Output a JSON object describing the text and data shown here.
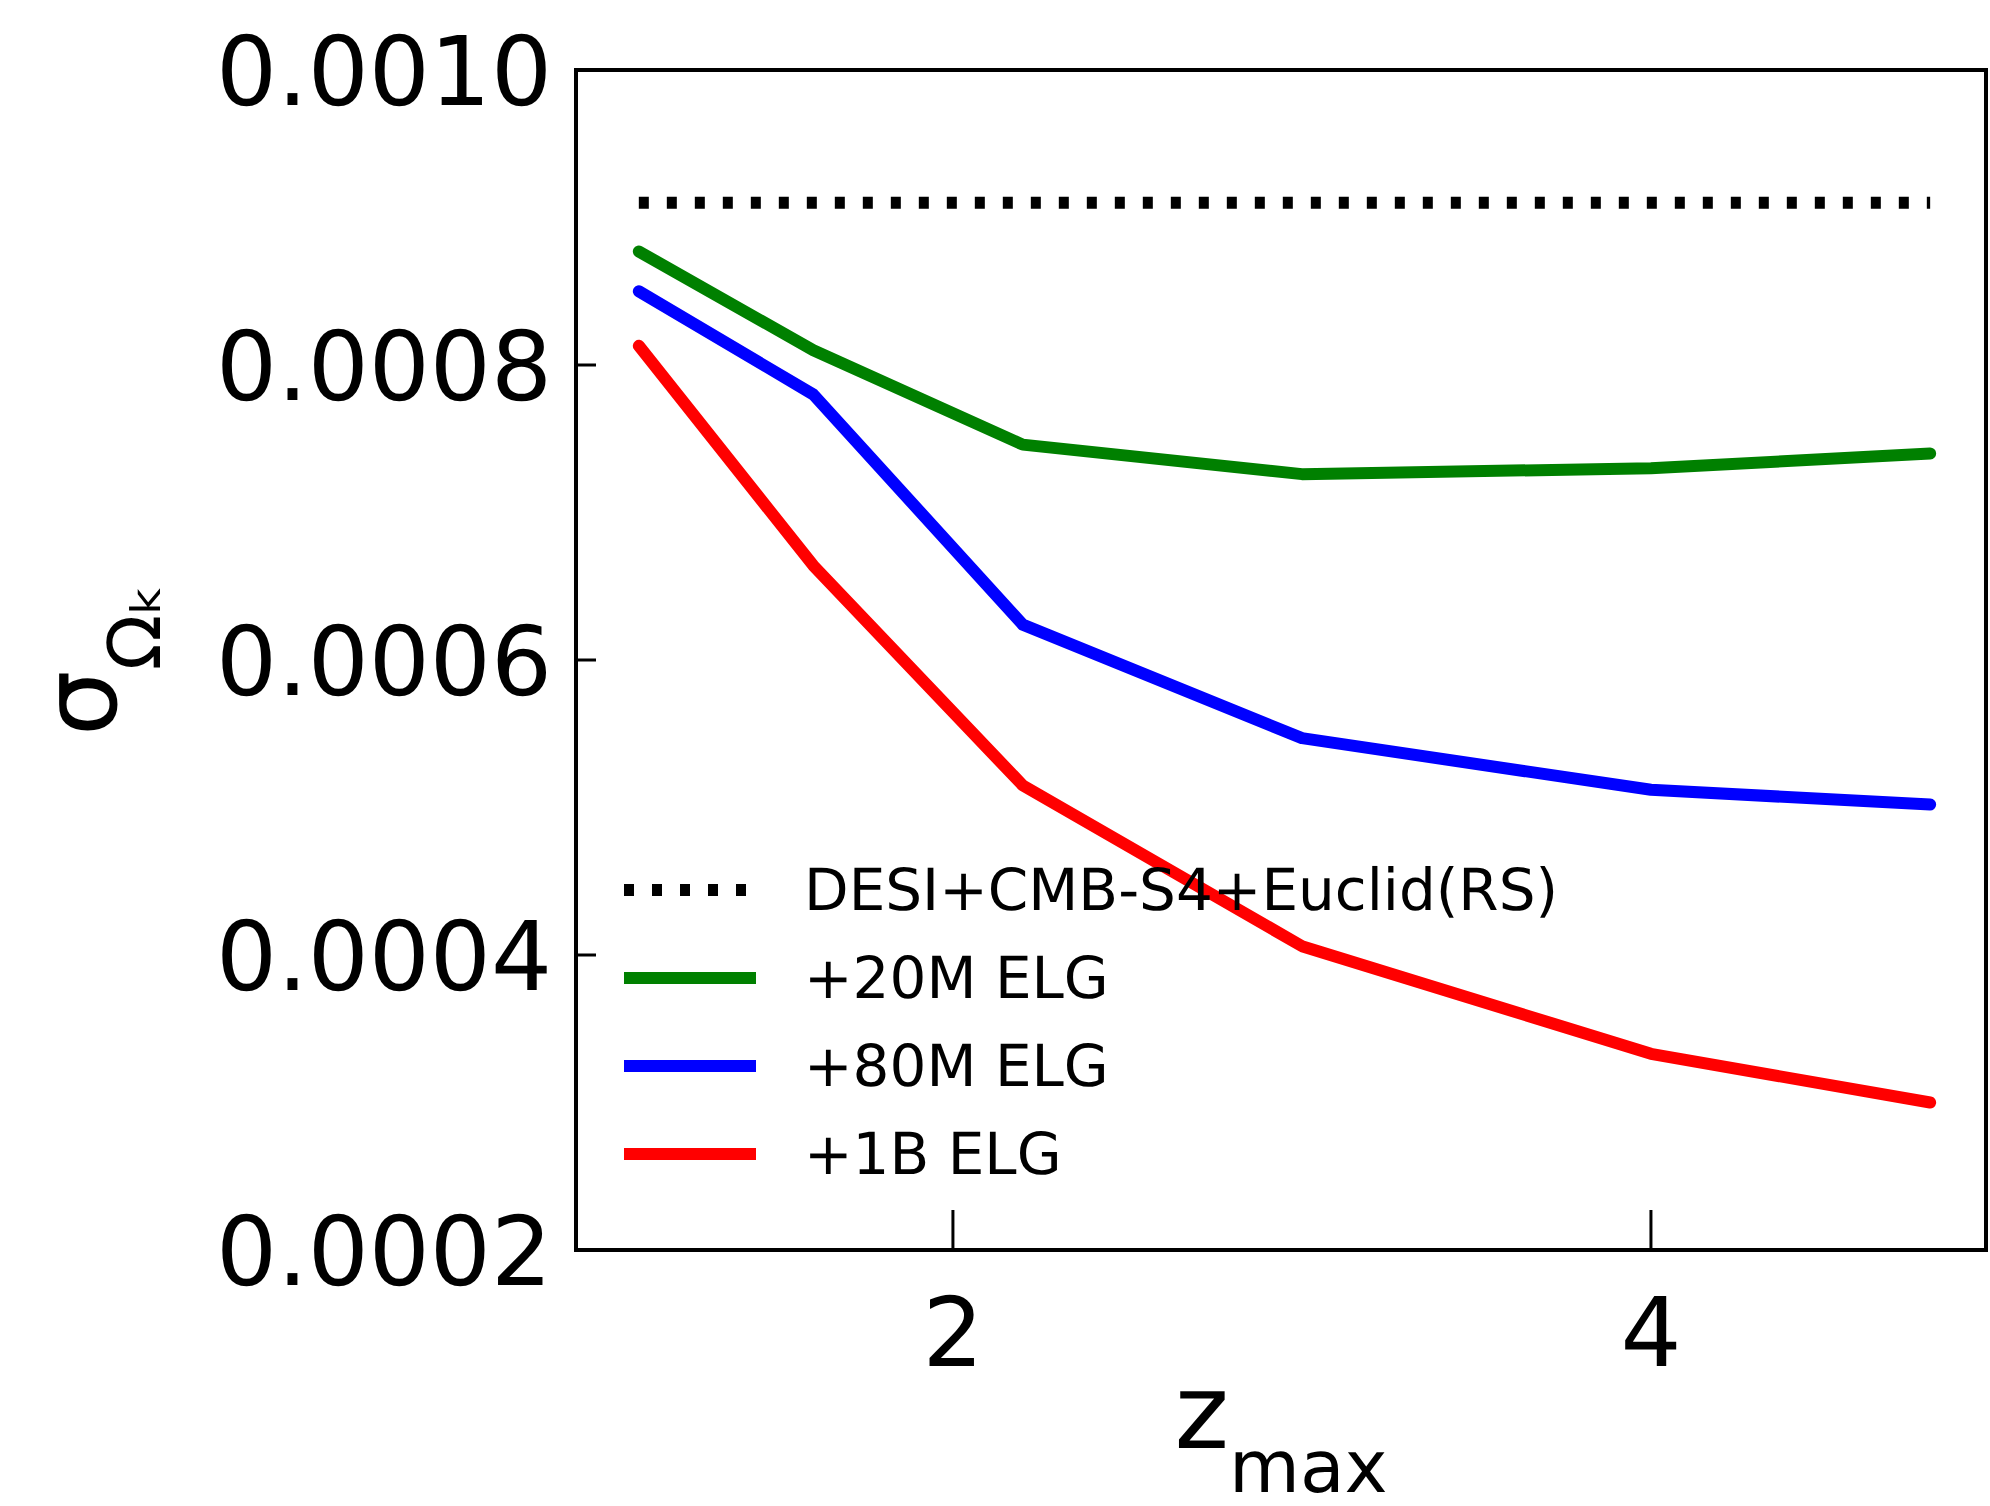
{
  "chart_data": {
    "type": "line",
    "xlabel": "z$_{max}$",
    "ylabel": "σ$_{Ωₖ}$",
    "xlim": [
      0.92,
      4.96
    ],
    "ylim": [
      0.0002,
      0.001
    ],
    "xticks": [
      2,
      4
    ],
    "yticks": [
      {
        "value": 0.0002,
        "label": "0.0002"
      },
      {
        "value": 0.0004,
        "label": "0.0004"
      },
      {
        "value": 0.0006,
        "label": "0.0006"
      },
      {
        "value": 0.0008,
        "label": "0.0008"
      },
      {
        "value": 0.001,
        "label": "0.0010"
      }
    ],
    "grid": false,
    "legend": "bottom left",
    "marker": "none",
    "series": [
      {
        "name": "DESI+CMB-S4+Euclid(RS)",
        "color": "#000000",
        "line_style": "dotted",
        "x": [
          1.1,
          4.8
        ],
        "values": [
          0.00091,
          0.00091
        ]
      },
      {
        "name": "+20M ELG",
        "color": "#008000",
        "line_style": "solid",
        "x": [
          1.1,
          1.6,
          2.2,
          3.0,
          4.0,
          4.8
        ],
        "values": [
          0.000877,
          0.00081,
          0.000746,
          0.000726,
          0.00073,
          0.00074
        ]
      },
      {
        "name": "+80M ELG",
        "color": "#0000ff",
        "line_style": "solid",
        "x": [
          1.1,
          1.6,
          2.2,
          3.0,
          4.0,
          4.8
        ],
        "values": [
          0.00085,
          0.00078,
          0.000624,
          0.000547,
          0.000512,
          0.000502
        ]
      },
      {
        "name": "+1B ELG",
        "color": "#ff0000",
        "line_style": "solid",
        "x": [
          1.1,
          1.6,
          2.2,
          3.0,
          4.0,
          4.8
        ],
        "values": [
          0.000813,
          0.000664,
          0.000515,
          0.000406,
          0.000333,
          0.0003
        ]
      }
    ]
  }
}
